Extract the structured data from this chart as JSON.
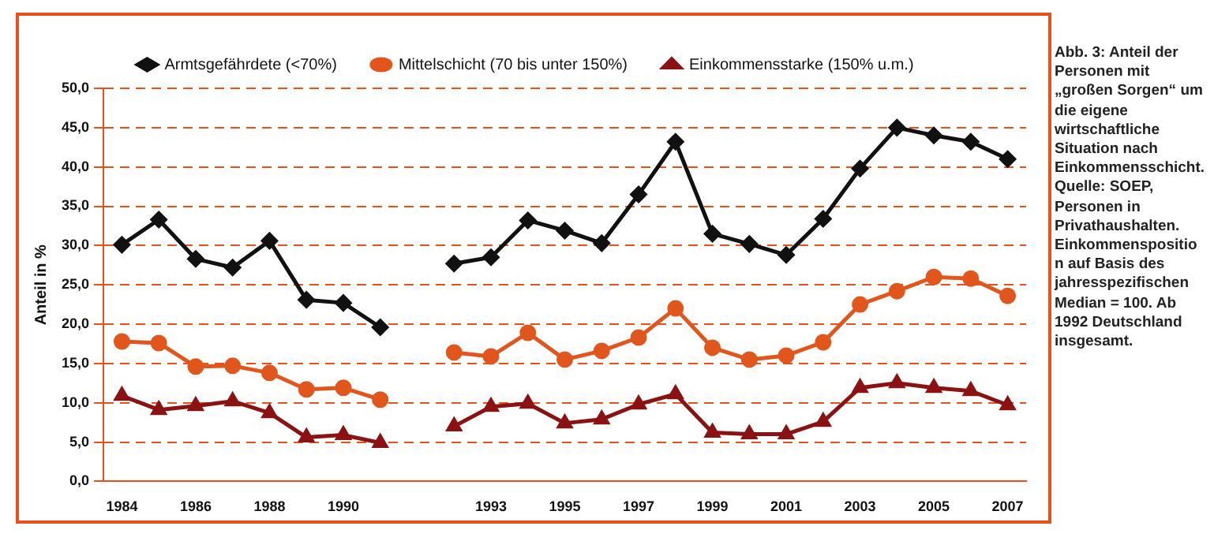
{
  "chart_data": {
    "type": "line",
    "ylabel": "Anteil in %",
    "categories": [
      "1984",
      null,
      "1986",
      null,
      "1988",
      null,
      "1990",
      null,
      null,
      null,
      "1993",
      null,
      "1995",
      null,
      "1997",
      null,
      "1999",
      null,
      "2001",
      null,
      "2003",
      null,
      "2005",
      null,
      "2007"
    ],
    "series": [
      {
        "name": "Armtsgefährdete (<70%)",
        "color": "#111111",
        "marker": "diamond",
        "values": [
          30.1,
          33.3,
          28.3,
          27.2,
          30.6,
          23.1,
          22.7,
          19.6,
          null,
          27.7,
          28.5,
          33.2,
          31.9,
          30.3,
          36.5,
          43.2,
          31.5,
          30.2,
          28.8,
          33.4,
          39.8,
          45.0,
          44.0,
          43.2,
          41.0
        ]
      },
      {
        "name": "Mittelschicht (70 bis unter 150%)",
        "color": "#e0561c",
        "marker": "circle",
        "values": [
          17.8,
          17.6,
          14.6,
          14.7,
          13.8,
          11.7,
          11.9,
          10.4,
          null,
          16.4,
          15.9,
          18.9,
          15.5,
          16.6,
          18.3,
          22.0,
          17.0,
          15.5,
          16.0,
          17.7,
          22.5,
          24.2,
          26.0,
          25.8,
          23.6
        ]
      },
      {
        "name": "Einkommensstarke (150% u.m.)",
        "color": "#8b1212",
        "marker": "triangle",
        "values": [
          10.9,
          9.1,
          9.6,
          10.2,
          8.7,
          5.6,
          5.9,
          4.9,
          null,
          7.0,
          9.5,
          9.9,
          7.4,
          7.9,
          9.8,
          11.1,
          6.2,
          6.0,
          6.0,
          7.6,
          11.9,
          12.5,
          11.9,
          11.5,
          9.7
        ]
      }
    ],
    "ylim": [
      0,
      50
    ],
    "yticks": [
      {
        "value": 0,
        "label": "0,0"
      },
      {
        "value": 5,
        "label": "5,0"
      },
      {
        "value": 10,
        "label": "10,0"
      },
      {
        "value": 15,
        "label": "15,0"
      },
      {
        "value": 20,
        "label": "20,0"
      },
      {
        "value": 25,
        "label": "25,0"
      },
      {
        "value": 30,
        "label": "30,0"
      },
      {
        "value": 35,
        "label": "35,0"
      },
      {
        "value": 40,
        "label": "40,0"
      },
      {
        "value": 45,
        "label": "45,0"
      },
      {
        "value": 50,
        "label": "50,0"
      }
    ],
    "grid": "y",
    "legend": "top",
    "line_style": "solid",
    "annotations": [
      "Abb. 3: Anteil der Personen mit „großen Sorgen“ um die eigene wirtschaftliche Situation nach Einkommensschicht. Quelle: SOEP, Personen in Privathaushalten. Einkommensposition auf Basis des jahresspezifischen Median = 100. Ab 1992 Deutschland insgesamt."
    ]
  }
}
